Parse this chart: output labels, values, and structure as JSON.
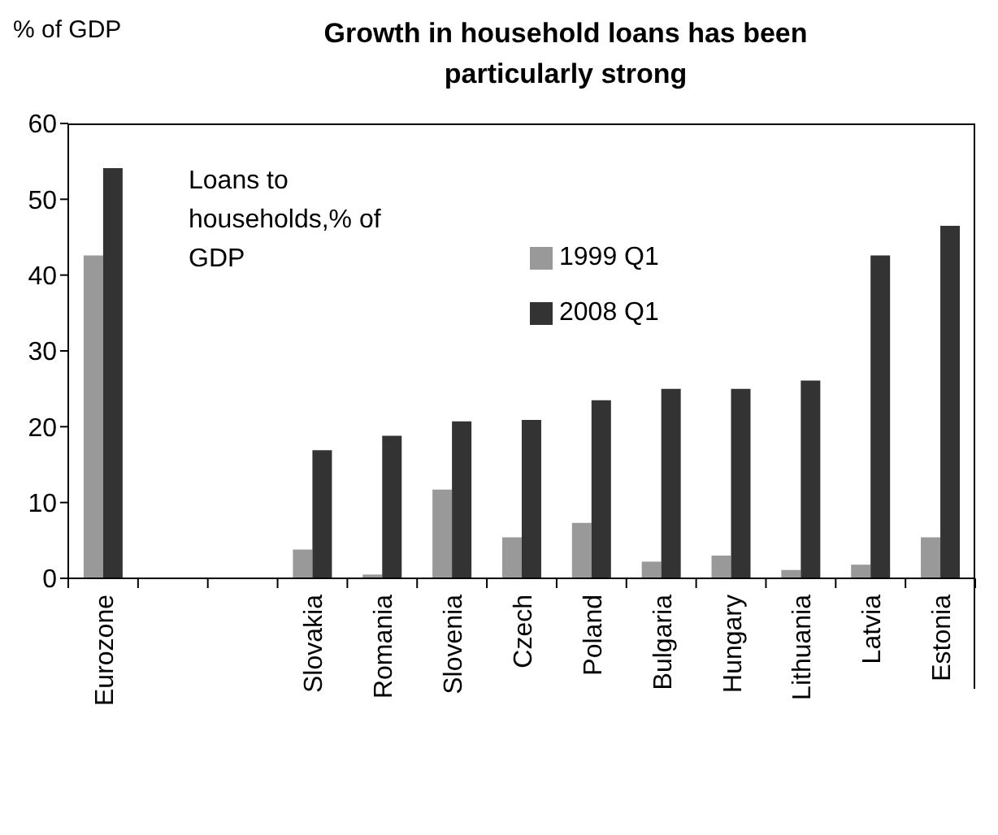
{
  "chart_data": {
    "type": "bar",
    "title": "Growth in household loans has been particularly strong",
    "ylabel": "% of GDP",
    "annotations": [
      "Loans to households,% of GDP"
    ],
    "categories": [
      "Eurozone",
      null,
      null,
      "Slovakia",
      "Romania",
      "Slovenia",
      "Czech",
      "Poland",
      "Bulgaria",
      "Hungary",
      "Lithuania",
      "Latvia",
      "Estonia"
    ],
    "series": [
      {
        "name": "1999 Q1",
        "color": "#999999",
        "values": [
          42.6,
          null,
          null,
          3.8,
          0.5,
          11.7,
          5.4,
          7.3,
          2.2,
          3.0,
          1.1,
          1.8,
          5.4
        ]
      },
      {
        "name": "2008 Q1",
        "color": "#333333",
        "values": [
          54.1,
          null,
          null,
          16.9,
          18.8,
          20.7,
          20.9,
          23.5,
          25.0,
          25.0,
          26.1,
          42.6,
          46.5
        ]
      }
    ],
    "ylim": [
      0,
      60
    ],
    "yticks": [
      0,
      10,
      20,
      30,
      40,
      50,
      60
    ],
    "legend": "top",
    "grid": false
  }
}
